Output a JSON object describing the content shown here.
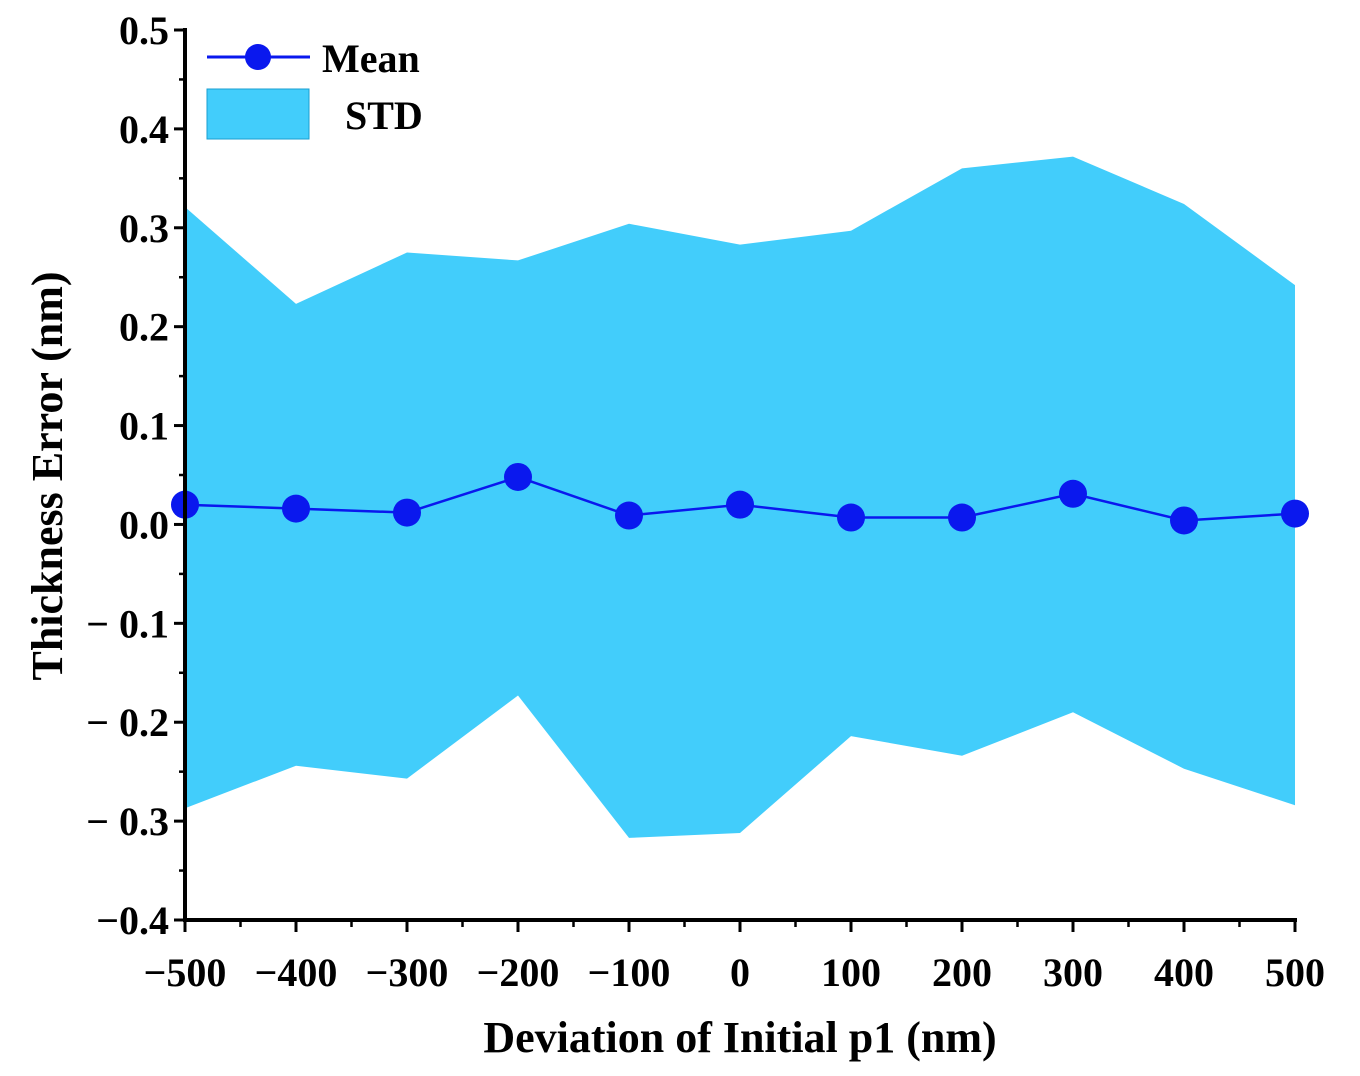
{
  "chart_data": {
    "type": "line",
    "xlabel": "Deviation of Initial p1 (nm)",
    "ylabel": "Thickness Error (nm)",
    "xlim": [
      -500,
      500
    ],
    "ylim": [
      -0.4,
      0.5
    ],
    "x_ticks": [
      -500,
      -400,
      -300,
      -200,
      -100,
      0,
      100,
      200,
      300,
      400,
      500
    ],
    "x_tick_labels": [
      "−500",
      "−400",
      "−300",
      "−200",
      "−100",
      "0",
      "100",
      "200",
      "300",
      "400",
      "500"
    ],
    "y_ticks": [
      -0.4,
      -0.3,
      -0.2,
      -0.1,
      0.0,
      0.1,
      0.2,
      0.3,
      0.4,
      0.5
    ],
    "y_tick_labels": [
      "−0.4",
      "− 0.3",
      "− 0.2",
      "− 0.1",
      "0.0",
      "0.1",
      "0.2",
      "0.3",
      "0.4",
      "0.5"
    ],
    "legend_position": "top-left",
    "grid": false,
    "series": [
      {
        "name": "Mean",
        "kind": "line-marker",
        "color": "#0a18ee",
        "x": [
          -500,
          -400,
          -300,
          -200,
          -100,
          0,
          100,
          200,
          300,
          400,
          500
        ],
        "y": [
          0.02,
          0.016,
          0.012,
          0.048,
          0.009,
          0.02,
          0.007,
          0.007,
          0.031,
          0.004,
          0.011
        ]
      },
      {
        "name": "STD",
        "kind": "band",
        "color": "#42cdfb",
        "x": [
          -500,
          -400,
          -300,
          -200,
          -100,
          0,
          100,
          200,
          300,
          400,
          500
        ],
        "upper": [
          0.321,
          0.223,
          0.275,
          0.267,
          0.304,
          0.283,
          0.297,
          0.36,
          0.372,
          0.324,
          0.242
        ],
        "lower": [
          -0.287,
          -0.244,
          -0.257,
          -0.173,
          -0.317,
          -0.312,
          -0.214,
          -0.234,
          -0.19,
          -0.247,
          -0.284
        ]
      }
    ]
  }
}
